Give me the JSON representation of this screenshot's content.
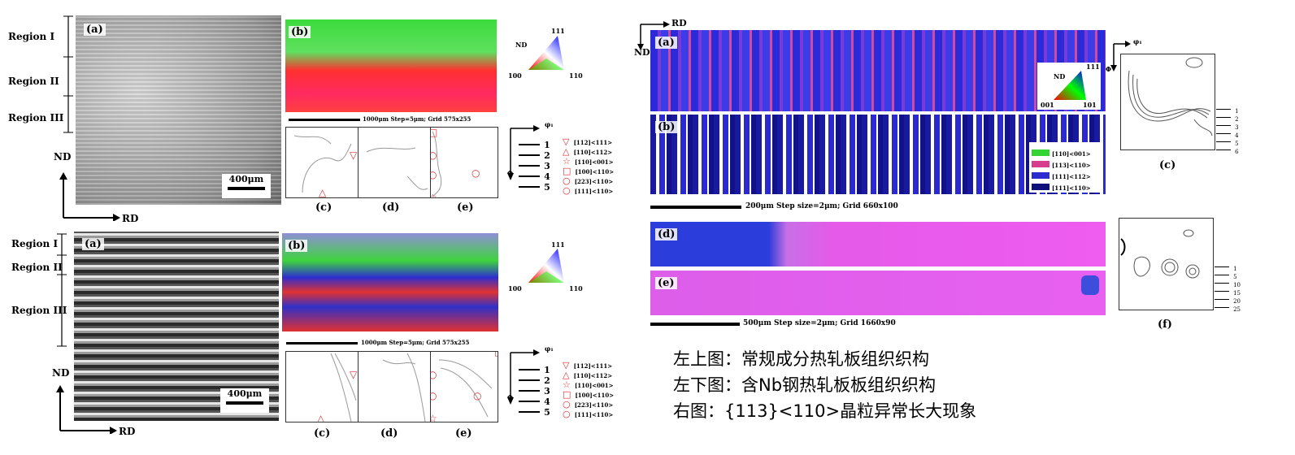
{
  "left_top": {
    "regions": [
      "Region I",
      "Region II",
      "Region III"
    ],
    "nd_label": "ND",
    "rd_label": "RD",
    "panel_a": "(a)",
    "panel_b": "(b)",
    "scale_text": "400μm",
    "ipf_labels": {
      "nd": "ND",
      "top": "111",
      "left": "100",
      "right": "110"
    },
    "step_text": "1000μm Step=5μm; Grid 575x255",
    "odf_panels": [
      "(c)",
      "(d)",
      "(e)"
    ],
    "phi_label": "φ₁",
    "phi_axis": "Φ",
    "numbers": [
      "1",
      "2",
      "3",
      "4",
      "5"
    ],
    "legend": [
      {
        "symbol": "▽",
        "text": "[112]<111>"
      },
      {
        "symbol": "△",
        "text": "[110]<112>"
      },
      {
        "symbol": "☆",
        "text": "[110]<001>"
      },
      {
        "symbol": "□",
        "text": "[100]<110>"
      },
      {
        "symbol": "○",
        "text": "[223]<110>"
      },
      {
        "symbol": "○",
        "text": "[111]<110>"
      }
    ]
  },
  "left_bottom": {
    "regions": [
      "Region I",
      "Region II",
      "Region III"
    ],
    "nd_label": "ND",
    "rd_label": "RD",
    "panel_a": "(a)",
    "panel_b": "(b)",
    "scale_text": "400μm",
    "ipf_labels": {
      "top": "111",
      "left": "100",
      "right": "110"
    },
    "step_text": "1000μm Step=5μm; Grid 575x255",
    "odf_panels": [
      "(c)",
      "(d)",
      "(e)"
    ],
    "phi_label": "φ₁",
    "phi_axis": "Φ",
    "numbers": [
      "1",
      "2",
      "3",
      "4",
      "5"
    ],
    "legend": [
      {
        "symbol": "▽",
        "text": "[112]<111>"
      },
      {
        "symbol": "△",
        "text": "[110]<112>"
      },
      {
        "symbol": "☆",
        "text": "[110]<001>"
      },
      {
        "symbol": "□",
        "text": "[100]<110>"
      },
      {
        "symbol": "○",
        "text": "[223]<110>"
      },
      {
        "symbol": "○",
        "text": "[111]<110>"
      }
    ]
  },
  "right": {
    "rd_label": "RD",
    "nd_label": "ND",
    "panel_a": "(a)",
    "panel_b": "(b)",
    "panel_c": "(c)",
    "panel_d": "(d)",
    "panel_e": "(e)",
    "panel_f": "(f)",
    "ipf_labels": {
      "nd": "ND",
      "top": "111",
      "left": "001",
      "right": "101"
    },
    "legend": [
      {
        "color": "#35d435",
        "text": "[110]<001>"
      },
      {
        "color": "#d83c8c",
        "text": "[113]<110>"
      },
      {
        "color": "#2b2bd0",
        "text": "[111]<112>"
      },
      {
        "color": "#10107a",
        "text": "[111]<110>"
      }
    ],
    "step_text_1": "200μm Step size=2μm; Grid 660x100",
    "step_text_2": "500μm Step size=2μm; Grid 1660x90",
    "phi_label": "φ₁",
    "phi_axis": "Φ",
    "odf_c_numbers": [
      "1",
      "2",
      "3",
      "4",
      "5",
      "6"
    ],
    "odf_f_numbers": [
      "1",
      "5",
      "10",
      "15",
      "20",
      "25"
    ]
  },
  "captions": [
    "左上图：常规成分热轧板组织织构",
    "左下图：含Nb钢热轧板板组织织构",
    "右图：{113}<110>晶粒异常长大现象"
  ],
  "colors": {
    "accent_red": "#e03030",
    "ipf_green": "#3cdc3c",
    "ipf_blue": "#2b2bd0",
    "ipf_red": "#ff3030"
  }
}
